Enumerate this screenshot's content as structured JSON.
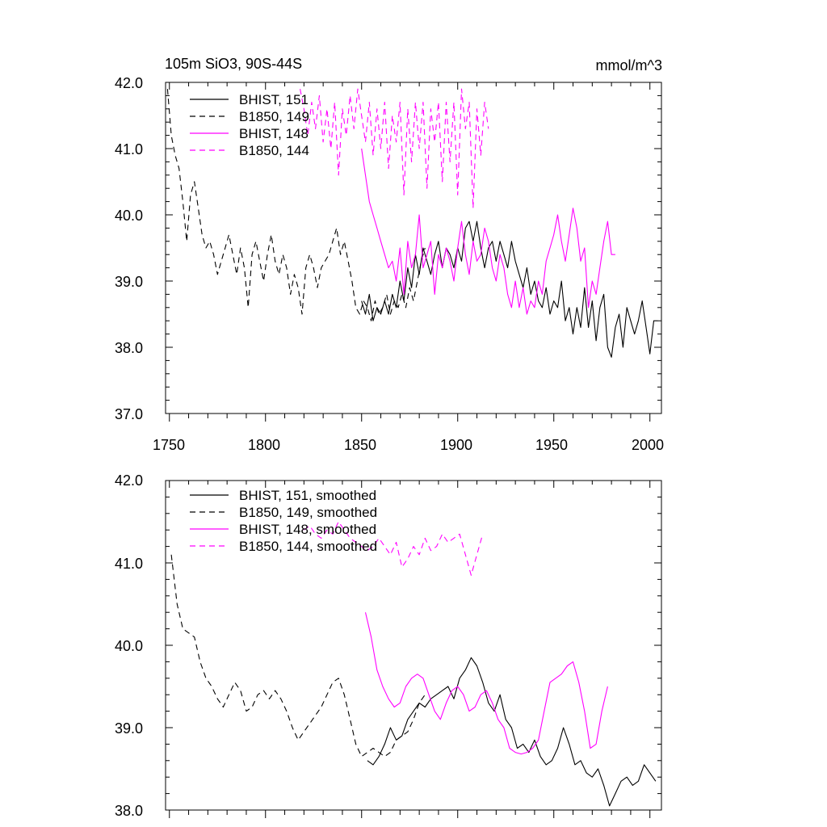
{
  "chart_data": [
    {
      "type": "line",
      "title": "105m SiO3, 90S-44S",
      "units_label": "mmol/m^3",
      "xlim": [
        1748,
        2006
      ],
      "ylim": [
        37.0,
        42.0
      ],
      "y_ticks": [
        37.0,
        38.0,
        39.0,
        40.0,
        41.0,
        42.0
      ],
      "y_tick_labels": [
        "37.0",
        "38.0",
        "39.0",
        "40.0",
        "41.0",
        "42.0"
      ],
      "x_ticks": [
        1750,
        1800,
        1850,
        1900,
        1950,
        2000
      ],
      "x_tick_labels": [
        "1750",
        "1800",
        "1850",
        "1900",
        "1950",
        "2000"
      ],
      "legend_position": "top-left",
      "series": [
        {
          "name": "BHIST, 151",
          "color": "#000000",
          "dash": "solid",
          "x": [
            1850,
            1852,
            1854,
            1856,
            1858,
            1860,
            1862,
            1864,
            1866,
            1868,
            1870,
            1872,
            1874,
            1876,
            1878,
            1880,
            1882,
            1884,
            1886,
            1888,
            1890,
            1892,
            1894,
            1896,
            1898,
            1900,
            1902,
            1904,
            1906,
            1908,
            1910,
            1912,
            1914,
            1916,
            1918,
            1920,
            1922,
            1924,
            1926,
            1928,
            1930,
            1932,
            1934,
            1936,
            1938,
            1940,
            1942,
            1944,
            1946,
            1948,
            1950,
            1952,
            1954,
            1956,
            1958,
            1960,
            1962,
            1964,
            1966,
            1968,
            1970,
            1972,
            1974,
            1976,
            1978,
            1980,
            1982,
            1984,
            1986,
            1988,
            1990,
            1992,
            1994,
            1996,
            1998,
            2000,
            2002,
            2004
          ],
          "values": [
            38.7,
            38.5,
            38.8,
            38.4,
            38.6,
            38.5,
            38.7,
            38.5,
            38.8,
            38.6,
            39.0,
            38.7,
            39.2,
            38.9,
            39.4,
            39.1,
            39.5,
            39.3,
            39.1,
            39.4,
            39.6,
            39.2,
            39.5,
            39.4,
            39.2,
            39.5,
            39.3,
            39.8,
            39.9,
            39.6,
            39.9,
            39.5,
            39.2,
            39.5,
            39.6,
            39.3,
            39.6,
            39.4,
            39.2,
            39.6,
            39.3,
            39.1,
            38.9,
            39.2,
            38.8,
            39.0,
            38.7,
            38.6,
            38.9,
            38.5,
            38.7,
            38.6,
            39.0,
            38.4,
            38.6,
            38.2,
            38.6,
            38.3,
            38.9,
            38.3,
            38.7,
            38.1,
            38.6,
            38.8,
            38.0,
            37.85,
            38.3,
            38.5,
            38.0,
            38.6,
            38.4,
            38.2,
            38.4,
            38.7,
            38.3,
            37.9,
            38.4,
            38.4
          ]
        },
        {
          "name": "B1850, 149",
          "color": "#000000",
          "dash": "dashed",
          "x": [
            1749,
            1751,
            1753,
            1755,
            1757,
            1759,
            1761,
            1763,
            1765,
            1767,
            1769,
            1771,
            1773,
            1775,
            1777,
            1779,
            1781,
            1783,
            1785,
            1787,
            1789,
            1791,
            1793,
            1795,
            1797,
            1799,
            1801,
            1803,
            1805,
            1807,
            1809,
            1811,
            1813,
            1815,
            1817,
            1819,
            1821,
            1823,
            1825,
            1827,
            1829,
            1831,
            1833,
            1835,
            1837,
            1839,
            1841,
            1843,
            1845,
            1847,
            1849,
            1851,
            1853,
            1855,
            1857,
            1859,
            1861,
            1863,
            1865,
            1867,
            1869,
            1871,
            1873,
            1875,
            1877,
            1879,
            1881,
            1883
          ],
          "values": [
            41.9,
            41.2,
            40.9,
            40.7,
            40.2,
            39.6,
            40.3,
            40.5,
            40.1,
            39.7,
            39.5,
            39.6,
            39.4,
            39.1,
            39.3,
            39.5,
            39.7,
            39.4,
            39.1,
            39.5,
            39.2,
            38.6,
            39.4,
            39.6,
            39.3,
            39.0,
            39.4,
            39.7,
            39.3,
            39.1,
            39.4,
            39.2,
            38.8,
            39.1,
            38.9,
            38.5,
            39.2,
            39.4,
            39.2,
            38.9,
            39.2,
            39.3,
            39.4,
            39.6,
            39.8,
            39.4,
            39.6,
            39.3,
            39.0,
            38.6,
            38.5,
            38.7,
            38.6,
            38.4,
            38.7,
            38.5,
            38.6,
            38.8,
            38.5,
            38.7,
            38.6,
            38.8,
            38.6,
            38.9,
            38.7,
            39.0,
            39.3,
            39.5
          ]
        },
        {
          "name": "BHIST, 148",
          "color": "#ff00ff",
          "dash": "solid",
          "x": [
            1850,
            1852,
            1854,
            1856,
            1858,
            1860,
            1862,
            1864,
            1866,
            1868,
            1870,
            1872,
            1874,
            1876,
            1878,
            1880,
            1882,
            1884,
            1886,
            1888,
            1890,
            1892,
            1894,
            1896,
            1898,
            1900,
            1902,
            1904,
            1906,
            1908,
            1910,
            1912,
            1914,
            1916,
            1918,
            1920,
            1922,
            1924,
            1926,
            1928,
            1930,
            1932,
            1934,
            1936,
            1938,
            1940,
            1942,
            1944,
            1946,
            1948,
            1950,
            1952,
            1954,
            1956,
            1958,
            1960,
            1962,
            1964,
            1966,
            1968,
            1970,
            1972,
            1974,
            1976,
            1978,
            1980,
            1982
          ],
          "values": [
            41.0,
            40.6,
            40.2,
            40.0,
            39.8,
            39.6,
            39.4,
            39.2,
            39.3,
            39.0,
            39.5,
            38.8,
            39.6,
            39.2,
            39.4,
            40.0,
            39.2,
            39.4,
            39.6,
            38.8,
            39.4,
            39.2,
            39.5,
            39.3,
            39.0,
            39.5,
            39.9,
            39.4,
            39.1,
            39.6,
            39.3,
            39.4,
            39.8,
            39.6,
            39.2,
            39.0,
            39.4,
            39.2,
            38.8,
            38.6,
            39.0,
            38.6,
            38.9,
            38.5,
            38.7,
            38.6,
            39.0,
            38.8,
            39.3,
            39.5,
            39.7,
            40.0,
            39.6,
            39.3,
            39.7,
            40.1,
            39.8,
            39.3,
            39.5,
            38.6,
            39.0,
            38.8,
            39.2,
            39.6,
            39.9,
            39.4,
            39.4
          ]
        },
        {
          "name": "B1850, 144",
          "color": "#ff00ff",
          "dash": "dashed",
          "x": [
            1818,
            1820,
            1822,
            1824,
            1826,
            1828,
            1830,
            1832,
            1834,
            1836,
            1838,
            1840,
            1842,
            1844,
            1846,
            1848,
            1850,
            1852,
            1854,
            1856,
            1858,
            1860,
            1862,
            1864,
            1866,
            1868,
            1870,
            1872,
            1874,
            1876,
            1878,
            1880,
            1882,
            1884,
            1886,
            1888,
            1890,
            1892,
            1894,
            1896,
            1898,
            1900,
            1902,
            1904,
            1906,
            1908,
            1910,
            1912,
            1914,
            1916
          ],
          "values": [
            41.9,
            41.6,
            41.2,
            41.7,
            41.3,
            41.8,
            41.1,
            41.6,
            41.0,
            41.7,
            40.6,
            41.6,
            41.2,
            41.8,
            41.3,
            41.9,
            41.5,
            41.1,
            41.7,
            40.9,
            41.6,
            41.0,
            41.7,
            40.7,
            41.5,
            41.1,
            41.7,
            40.3,
            41.6,
            40.8,
            41.7,
            41.0,
            41.7,
            40.4,
            41.6,
            41.1,
            41.7,
            40.5,
            41.7,
            40.8,
            41.7,
            40.3,
            41.9,
            41.3,
            41.7,
            40.1,
            41.6,
            40.9,
            41.7,
            41.3
          ]
        }
      ]
    },
    {
      "type": "line",
      "title": "",
      "xlim": [
        1748,
        2006
      ],
      "ylim": [
        38.0,
        42.0
      ],
      "y_ticks": [
        38.0,
        39.0,
        40.0,
        41.0,
        42.0
      ],
      "y_tick_labels": [
        "38.0",
        "39.0",
        "40.0",
        "41.0",
        "42.0"
      ],
      "x_ticks": [
        1750,
        1800,
        1850,
        1900,
        1950,
        2000
      ],
      "legend_position": "top-left",
      "series": [
        {
          "name": "BHIST, 151, smoothed",
          "color": "#000000",
          "dash": "solid",
          "x": [
            1853,
            1856,
            1859,
            1862,
            1865,
            1868,
            1871,
            1874,
            1877,
            1880,
            1883,
            1886,
            1889,
            1892,
            1895,
            1898,
            1901,
            1904,
            1907,
            1910,
            1913,
            1916,
            1919,
            1922,
            1925,
            1928,
            1931,
            1934,
            1937,
            1940,
            1943,
            1946,
            1949,
            1952,
            1955,
            1958,
            1961,
            1964,
            1967,
            1970,
            1973,
            1976,
            1979,
            1982,
            1985,
            1988,
            1991,
            1994,
            1997,
            2000,
            2003
          ],
          "values": [
            38.6,
            38.55,
            38.65,
            38.8,
            39.0,
            38.85,
            38.9,
            39.1,
            39.2,
            39.3,
            39.25,
            39.35,
            39.4,
            39.45,
            39.5,
            39.35,
            39.6,
            39.7,
            39.85,
            39.75,
            39.55,
            39.3,
            39.2,
            39.4,
            39.1,
            39.0,
            38.75,
            38.8,
            38.7,
            38.85,
            38.65,
            38.55,
            38.6,
            38.75,
            39.0,
            38.8,
            38.55,
            38.6,
            38.45,
            38.4,
            38.5,
            38.3,
            38.05,
            38.2,
            38.35,
            38.4,
            38.3,
            38.35,
            38.55,
            38.45,
            38.35
          ]
        },
        {
          "name": "B1850, 149, smoothed",
          "color": "#000000",
          "dash": "dashed",
          "x": [
            1751,
            1754,
            1757,
            1760,
            1763,
            1766,
            1769,
            1772,
            1775,
            1778,
            1781,
            1784,
            1787,
            1790,
            1793,
            1796,
            1799,
            1802,
            1805,
            1808,
            1811,
            1814,
            1817,
            1820,
            1823,
            1826,
            1829,
            1832,
            1835,
            1838,
            1841,
            1844,
            1847,
            1850,
            1853,
            1856,
            1859,
            1862,
            1865,
            1868,
            1871,
            1874,
            1877,
            1880,
            1883
          ],
          "values": [
            41.1,
            40.5,
            40.2,
            40.15,
            40.1,
            39.8,
            39.6,
            39.5,
            39.35,
            39.25,
            39.4,
            39.55,
            39.45,
            39.2,
            39.25,
            39.4,
            39.45,
            39.35,
            39.45,
            39.35,
            39.2,
            39.0,
            38.85,
            38.95,
            39.05,
            39.15,
            39.25,
            39.4,
            39.55,
            39.6,
            39.4,
            39.1,
            38.8,
            38.65,
            38.7,
            38.75,
            38.7,
            38.65,
            38.7,
            38.85,
            38.9,
            38.95,
            39.1,
            39.3,
            39.4
          ]
        },
        {
          "name": "BHIST, 148, smoothed",
          "color": "#ff00ff",
          "dash": "solid",
          "x": [
            1852,
            1855,
            1858,
            1861,
            1864,
            1867,
            1870,
            1873,
            1876,
            1879,
            1882,
            1885,
            1888,
            1891,
            1894,
            1897,
            1900,
            1903,
            1906,
            1909,
            1912,
            1915,
            1918,
            1921,
            1924,
            1927,
            1930,
            1933,
            1936,
            1939,
            1942,
            1945,
            1948,
            1951,
            1954,
            1957,
            1960,
            1963,
            1966,
            1969,
            1972,
            1975,
            1978
          ],
          "values": [
            40.4,
            40.1,
            39.7,
            39.5,
            39.35,
            39.25,
            39.3,
            39.5,
            39.6,
            39.65,
            39.6,
            39.4,
            39.2,
            39.1,
            39.3,
            39.45,
            39.5,
            39.4,
            39.2,
            39.25,
            39.4,
            39.45,
            39.3,
            39.1,
            39.0,
            38.75,
            38.7,
            38.68,
            38.7,
            38.75,
            38.85,
            39.2,
            39.55,
            39.6,
            39.65,
            39.75,
            39.8,
            39.55,
            39.2,
            38.75,
            38.8,
            39.2,
            39.5
          ]
        },
        {
          "name": "B1850, 144, smoothed",
          "color": "#ff00ff",
          "dash": "dashed",
          "x": [
            1820,
            1823,
            1826,
            1829,
            1832,
            1835,
            1838,
            1841,
            1844,
            1847,
            1850,
            1853,
            1856,
            1859,
            1862,
            1865,
            1868,
            1871,
            1874,
            1877,
            1880,
            1883,
            1886,
            1889,
            1892,
            1895,
            1898,
            1901,
            1904,
            1907,
            1910,
            1913
          ],
          "values": [
            41.4,
            41.45,
            41.35,
            41.3,
            41.4,
            41.35,
            41.5,
            41.4,
            41.3,
            41.25,
            41.2,
            41.15,
            41.2,
            41.3,
            41.2,
            41.1,
            41.25,
            40.95,
            41.05,
            41.2,
            41.1,
            41.3,
            41.15,
            41.2,
            41.35,
            41.25,
            41.3,
            41.35,
            41.1,
            40.85,
            41.1,
            41.35
          ]
        }
      ]
    }
  ]
}
